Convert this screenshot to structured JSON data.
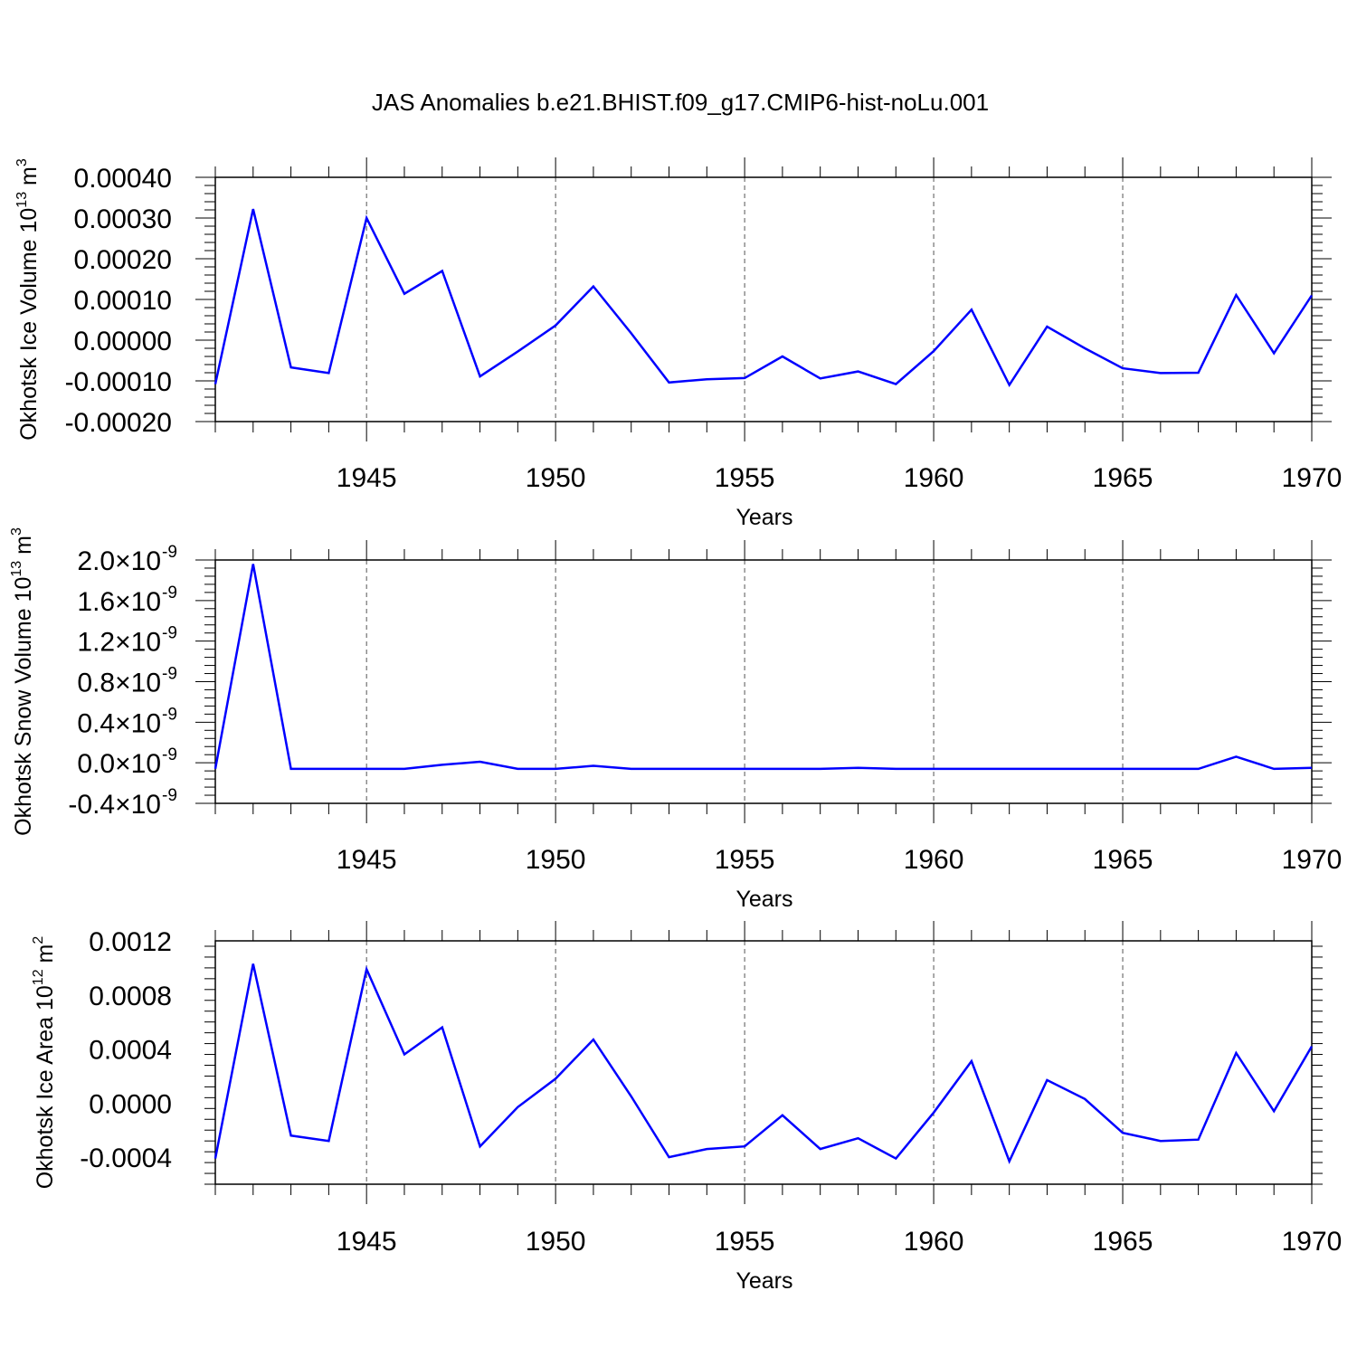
{
  "title": "JAS Anomalies b.e21.BHIST.f09_g17.CMIP6-hist-noLu.001",
  "colors": {
    "line": "#0000ff",
    "axis": "#000000",
    "grid": "#000000"
  },
  "chart_data": [
    {
      "type": "line",
      "ylabel": "Okhotsk Ice Volume",
      "yunit_base": "10",
      "yunit_exp": "13",
      "yunit_suffix": "m",
      "yunit_suffix_exp": "3",
      "xlabel": "Years",
      "xlim": [
        1941,
        1970
      ],
      "ylim": [
        -0.0002,
        0.0004
      ],
      "xticks": [
        "1945",
        "1950",
        "1955",
        "1960",
        "1965",
        "1970"
      ],
      "yticks": [
        "-0.00020",
        "-0.00010",
        "0.00000",
        "0.00010",
        "0.00020",
        "0.00030",
        "0.00040"
      ],
      "ytick_values": [
        -0.0002,
        -0.0001,
        0.0,
        0.0001,
        0.0002,
        0.0003,
        0.0004
      ],
      "x": [
        1941,
        1942,
        1943,
        1944,
        1945,
        1946,
        1947,
        1948,
        1949,
        1950,
        1951,
        1952,
        1953,
        1954,
        1955,
        1956,
        1957,
        1958,
        1959,
        1960,
        1961,
        1962,
        1963,
        1964,
        1965,
        1966,
        1967,
        1968,
        1969,
        1970
      ],
      "series": [
        {
          "name": "Ice Volume",
          "values": [
            -0.000108,
            0.000322,
            -6.7e-05,
            -8.1e-05,
            0.0003,
            0.000114,
            0.00017,
            -8.9e-05,
            -2.8e-05,
            3.6e-05,
            0.000132,
            1.7e-05,
            -0.000104,
            -9.6e-05,
            -9.3e-05,
            -4e-05,
            -9.4e-05,
            -7.7e-05,
            -0.000108,
            -2.7e-05,
            7.5e-05,
            -0.00011,
            3.3e-05,
            -2e-05,
            -6.9e-05,
            -8.1e-05,
            -8e-05,
            0.000111,
            -3.2e-05,
            0.00011
          ]
        }
      ]
    },
    {
      "type": "line",
      "ylabel": "Okhotsk Snow Volume",
      "yunit_base": "10",
      "yunit_exp": "13",
      "yunit_suffix": "m",
      "yunit_suffix_exp": "3",
      "xlabel": "Years",
      "xlim": [
        1941,
        1970
      ],
      "ylim": [
        -4e-10,
        2e-09
      ],
      "xticks": [
        "1945",
        "1950",
        "1955",
        "1960",
        "1965",
        "1970"
      ],
      "yticks": [
        "-0.4×10",
        "0.0×10",
        "0.4×10",
        "0.8×10",
        "1.2×10",
        "1.6×10",
        "2.0×10"
      ],
      "ytick_exp": "-9",
      "ytick_values": [
        -4e-10,
        0.0,
        4e-10,
        8e-10,
        1.2e-09,
        1.6e-09,
        2e-09
      ],
      "x": [
        1941,
        1942,
        1943,
        1944,
        1945,
        1946,
        1947,
        1948,
        1949,
        1950,
        1951,
        1952,
        1953,
        1954,
        1955,
        1956,
        1957,
        1958,
        1959,
        1960,
        1961,
        1962,
        1963,
        1964,
        1965,
        1966,
        1967,
        1968,
        1969,
        1970
      ],
      "series": [
        {
          "name": "Snow Volume",
          "values": [
            -6e-11,
            1.96e-09,
            -6e-11,
            -6e-11,
            -6e-11,
            -6e-11,
            -2e-11,
            1e-11,
            -6e-11,
            -6e-11,
            -3e-11,
            -6e-11,
            -6e-11,
            -6e-11,
            -6e-11,
            -6e-11,
            -6e-11,
            -5e-11,
            -6e-11,
            -6e-11,
            -6e-11,
            -6e-11,
            -6e-11,
            -6e-11,
            -6e-11,
            -6e-11,
            -6e-11,
            6e-11,
            -6e-11,
            -5e-11
          ]
        }
      ]
    },
    {
      "type": "line",
      "ylabel": "Okhotsk Ice Area",
      "yunit_base": "10",
      "yunit_exp": "12",
      "yunit_suffix": "m",
      "yunit_suffix_exp": "2",
      "xlabel": "Years",
      "xlim": [
        1941,
        1970
      ],
      "ylim": [
        -0.0006,
        0.0012
      ],
      "xticks": [
        "1945",
        "1950",
        "1955",
        "1960",
        "1965",
        "1970"
      ],
      "yticks": [
        "-0.0004",
        "0.0000",
        "0.0004",
        "0.0008",
        "0.0012"
      ],
      "ytick_values": [
        -0.0004,
        0.0,
        0.0004,
        0.0008,
        0.0012
      ],
      "x": [
        1941,
        1942,
        1943,
        1944,
        1945,
        1946,
        1947,
        1948,
        1949,
        1950,
        1951,
        1952,
        1953,
        1954,
        1955,
        1956,
        1957,
        1958,
        1959,
        1960,
        1961,
        1962,
        1963,
        1964,
        1965,
        1966,
        1967,
        1968,
        1969,
        1970
      ],
      "series": [
        {
          "name": "Ice Area",
          "values": [
            -0.00041,
            0.00103,
            -0.00024,
            -0.00028,
            0.00099,
            0.00036,
            0.00056,
            -0.00032,
            -3e-05,
            0.00018,
            0.00047,
            5e-05,
            -0.0004,
            -0.00034,
            -0.00032,
            -9e-05,
            -0.00034,
            -0.00026,
            -0.00041,
            -7e-05,
            0.00031,
            -0.00043,
            0.00017,
            3e-05,
            -0.00022,
            -0.00028,
            -0.00027,
            0.00037,
            -6e-05,
            0.00042
          ]
        }
      ]
    }
  ]
}
